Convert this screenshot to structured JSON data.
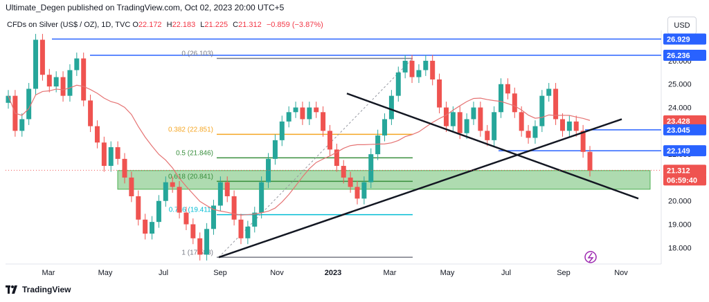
{
  "header": {
    "publisher": "Ultimate_Degen published on TradingView.com, Oct 02, 2023 20:00 UTC+5"
  },
  "legend": {
    "symbol": "CFDs on Silver (US$ / OZ), 1D, TVC",
    "o_label": "O",
    "o": "22.172",
    "h_label": "H",
    "h": "22.183",
    "l_label": "L",
    "l": "21.225",
    "c_label": "C",
    "c": "21.312",
    "change": "−0.859 (−3.87%)"
  },
  "currency": "USD",
  "footer": {
    "brand": "TradingView"
  },
  "colors": {
    "up": "#26a69a",
    "down": "#ef5350",
    "ma": "#e57373",
    "hline_blue": "#2962ff",
    "fib_orange": "#f5a623",
    "fib_green": "#388e3c",
    "fib_teal": "#00bcd4",
    "fib_gray": "#787b86",
    "zone": "#4caf50",
    "trend": "#131722"
  },
  "chart_data": {
    "type": "candlestick",
    "x_ticks": [
      "Mar",
      "May",
      "Jul",
      "Sep",
      "Nov",
      "2023",
      "Mar",
      "May",
      "Jul",
      "Sep",
      "Nov"
    ],
    "y_ticks": [
      "18.000",
      "19.000",
      "20.000",
      "21.000",
      "22.000",
      "23.000",
      "24.000",
      "25.000",
      "26.000"
    ],
    "ylim": [
      17.3,
      27.3
    ],
    "price_labels": [
      "26.929",
      "26.236",
      "23.428",
      "23.045",
      "22.149",
      "21.312",
      "06:59:40"
    ],
    "horizontal_levels": [
      {
        "value": 26.929,
        "label": "26.929"
      },
      {
        "value": 26.236,
        "label": "26.236"
      },
      {
        "value": 23.045,
        "label": "23.045"
      },
      {
        "value": 22.149,
        "label": "22.149"
      }
    ],
    "fibonacci": [
      {
        "ratio_label": "0 (26.103)",
        "value": 26.103
      },
      {
        "ratio_label": "0.382 (22.851)",
        "value": 22.851
      },
      {
        "ratio_label": "0.5 (21.846)",
        "value": 21.846
      },
      {
        "ratio_label": "0.618 (20.841)",
        "value": 20.841
      },
      {
        "ratio_label": "0.786 (19.411)",
        "value": 19.411
      },
      {
        "ratio_label": "1 (17.588)",
        "value": 17.588
      }
    ],
    "demand_zone": [
      20.5,
      21.3
    ],
    "ma_label": "23.428",
    "last_close": 21.312,
    "series": [
      {
        "name": "price",
        "values": [
          24.5,
          23.0,
          23.5,
          24.8,
          26.9,
          25.4,
          24.9,
          25.3,
          24.5,
          25.6,
          26.1,
          24.3,
          23.2,
          22.5,
          21.5,
          22.3,
          21.8,
          21.0,
          20.2,
          19.2,
          18.6,
          19.1,
          20.0,
          20.8,
          20.6,
          19.5,
          19.0,
          18.4,
          17.7,
          18.8,
          19.8,
          20.8,
          20.2,
          19.2,
          18.4,
          18.9,
          19.5,
          20.8,
          21.8,
          22.6,
          23.4,
          23.8,
          24.0,
          23.5,
          24.0,
          23.8,
          23.0,
          22.2,
          21.5,
          21.0,
          20.6,
          20.1,
          20.8,
          22.0,
          22.8,
          23.5,
          24.5,
          25.5,
          26.0,
          25.3,
          25.6,
          26.0,
          25.2,
          24.0,
          23.2,
          23.8,
          22.9,
          23.5,
          24.0,
          23.0,
          22.6,
          23.8,
          25.0,
          24.6,
          23.8,
          23.0,
          22.7,
          23.2,
          24.5,
          24.8,
          23.5,
          23.0,
          23.4,
          23.0,
          22.1,
          21.3
        ]
      }
    ]
  }
}
